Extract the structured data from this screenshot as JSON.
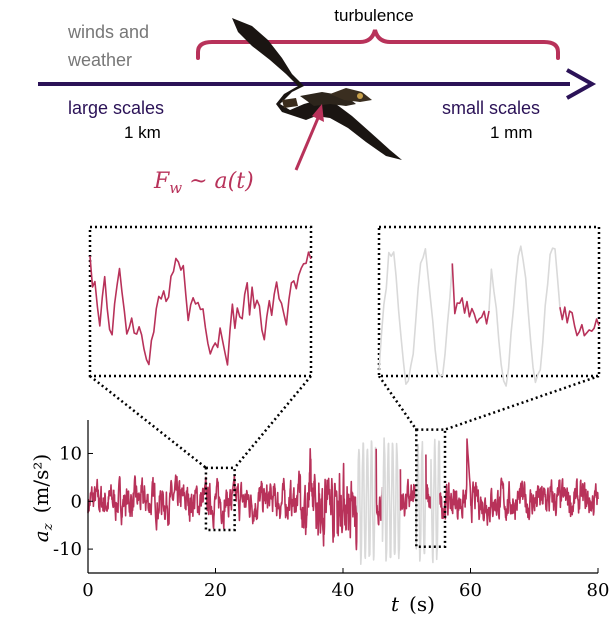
{
  "header": {
    "turbulence_label": "turbulence",
    "winds_line1": "winds and",
    "winds_line2": "weather",
    "large_scales_label": "large scales",
    "large_scales_value": "1 km",
    "small_scales_label": "small scales",
    "small_scales_value": "1 mm",
    "force_formula": "F_w ~ a(t)",
    "force_symbol": "F",
    "force_subscript": "w",
    "force_relation": " ~ a(t)"
  },
  "colors": {
    "arrow": "#2b1257",
    "accent": "#b8325a",
    "grey_text": "#777777",
    "signal": "#b8325a",
    "signal_muted": "#d9d9d9"
  },
  "icons": {
    "bird": "eagle-silhouette-icon"
  },
  "chart_data": {
    "type": "line",
    "xlabel": "t  (s)",
    "xlabel_var": "t",
    "xlabel_unit": "(s)",
    "ylabel_var": "a",
    "ylabel_sub": "z",
    "ylabel_unit": "(m/s²)",
    "xlim": [
      0,
      80
    ],
    "ylim": [
      -15,
      17
    ],
    "xticks": [
      0,
      20,
      40,
      60,
      80
    ],
    "yticks": [
      10,
      0,
      -10
    ],
    "ytick_labels": [
      "10",
      "0",
      "-10"
    ],
    "grid": false,
    "muted_intervals": [
      [
        42.3,
        45.2
      ],
      [
        46.2,
        49.0
      ],
      [
        51.5,
        53.0
      ],
      [
        53.8,
        55.2
      ]
    ],
    "zoom_windows": [
      {
        "x_range": [
          18.5,
          23
        ],
        "y_range": [
          -6,
          7
        ]
      },
      {
        "x_range": [
          51.5,
          56
        ],
        "y_range": [
          -9.5,
          15
        ]
      }
    ]
  }
}
